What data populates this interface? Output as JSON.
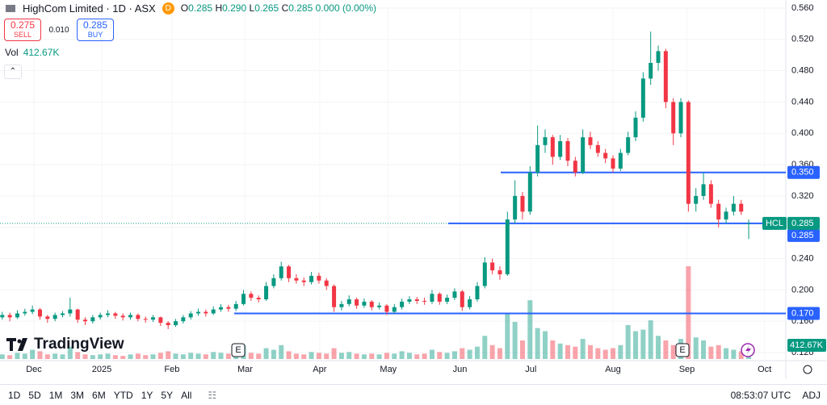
{
  "chart_data": {
    "type": "candlestick",
    "title": "HighCom Limited · 1D · ASX",
    "ticker": "HCL",
    "up_color": "#089981",
    "down_color": "#f23645",
    "ylim": [
      0.12,
      0.56
    ],
    "yticks": [
      {
        "value": 0.56,
        "label": "0.560"
      },
      {
        "value": 0.52,
        "label": "0.520"
      },
      {
        "value": 0.48,
        "label": "0.480"
      },
      {
        "value": 0.44,
        "label": "0.440"
      },
      {
        "value": 0.4,
        "label": "0.400"
      },
      {
        "value": 0.36,
        "label": "0.360"
      },
      {
        "value": 0.32,
        "label": "0.320"
      },
      {
        "value": 0.28,
        "label": "0.280"
      },
      {
        "value": 0.24,
        "label": "0.240"
      },
      {
        "value": 0.2,
        "label": "0.200"
      },
      {
        "value": 0.16,
        "label": "0.160"
      },
      {
        "value": 0.12,
        "label": "0.120"
      }
    ],
    "xlim": [
      -0.3,
      103.6
    ],
    "xticks": [
      {
        "value": 4.2,
        "label": "Dec"
      },
      {
        "value": 13.2,
        "label": "2025"
      },
      {
        "value": 22.5,
        "label": "Feb"
      },
      {
        "value": 32.2,
        "label": "Mar"
      },
      {
        "value": 42.1,
        "label": "Apr"
      },
      {
        "value": 51.2,
        "label": "May"
      },
      {
        "value": 60.7,
        "label": "Jun"
      },
      {
        "value": 70.1,
        "label": "Jul"
      },
      {
        "value": 81,
        "label": "Aug"
      },
      {
        "value": 90.8,
        "label": "Sep"
      },
      {
        "value": 101.1,
        "label": "Oct"
      }
    ],
    "candles": [
      [
        0.165,
        0.172,
        0.162,
        0.168
      ],
      [
        0.168,
        0.171,
        0.16,
        0.165
      ],
      [
        0.165,
        0.174,
        0.163,
        0.17
      ],
      [
        0.17,
        0.176,
        0.167,
        0.172
      ],
      [
        0.172,
        0.18,
        0.169,
        0.175
      ],
      [
        0.175,
        0.177,
        0.162,
        0.166
      ],
      [
        0.166,
        0.168,
        0.158,
        0.163
      ],
      [
        0.163,
        0.171,
        0.16,
        0.168
      ],
      [
        0.168,
        0.173,
        0.165,
        0.17
      ],
      [
        0.17,
        0.19,
        0.166,
        0.175
      ],
      [
        0.175,
        0.176,
        0.158,
        0.162
      ],
      [
        0.162,
        0.165,
        0.155,
        0.16
      ],
      [
        0.16,
        0.168,
        0.157,
        0.165
      ],
      [
        0.165,
        0.171,
        0.162,
        0.168
      ],
      [
        0.168,
        0.174,
        0.165,
        0.17
      ],
      [
        0.17,
        0.172,
        0.163,
        0.167
      ],
      [
        0.167,
        0.17,
        0.161,
        0.165
      ],
      [
        0.165,
        0.171,
        0.162,
        0.168
      ],
      [
        0.168,
        0.17,
        0.16,
        0.163
      ],
      [
        0.163,
        0.166,
        0.158,
        0.162
      ],
      [
        0.162,
        0.168,
        0.159,
        0.165
      ],
      [
        0.165,
        0.166,
        0.154,
        0.158
      ],
      [
        0.158,
        0.16,
        0.15,
        0.155
      ],
      [
        0.155,
        0.163,
        0.153,
        0.16
      ],
      [
        0.16,
        0.168,
        0.157,
        0.165
      ],
      [
        0.165,
        0.173,
        0.162,
        0.17
      ],
      [
        0.17,
        0.176,
        0.167,
        0.172
      ],
      [
        0.172,
        0.175,
        0.166,
        0.17
      ],
      [
        0.17,
        0.179,
        0.168,
        0.175
      ],
      [
        0.175,
        0.182,
        0.172,
        0.178
      ],
      [
        0.178,
        0.181,
        0.172,
        0.176
      ],
      [
        0.176,
        0.186,
        0.173,
        0.182
      ],
      [
        0.182,
        0.2,
        0.18,
        0.195
      ],
      [
        0.195,
        0.198,
        0.186,
        0.19
      ],
      [
        0.19,
        0.193,
        0.184,
        0.188
      ],
      [
        0.188,
        0.21,
        0.186,
        0.205
      ],
      [
        0.205,
        0.22,
        0.202,
        0.215
      ],
      [
        0.215,
        0.236,
        0.212,
        0.23
      ],
      [
        0.23,
        0.232,
        0.21,
        0.215
      ],
      [
        0.215,
        0.22,
        0.208,
        0.212
      ],
      [
        0.212,
        0.216,
        0.205,
        0.21
      ],
      [
        0.21,
        0.223,
        0.207,
        0.218
      ],
      [
        0.218,
        0.222,
        0.208,
        0.212
      ],
      [
        0.212,
        0.215,
        0.2,
        0.205
      ],
      [
        0.205,
        0.207,
        0.172,
        0.178
      ],
      [
        0.178,
        0.186,
        0.174,
        0.182
      ],
      [
        0.182,
        0.193,
        0.179,
        0.188
      ],
      [
        0.188,
        0.19,
        0.176,
        0.18
      ],
      [
        0.18,
        0.189,
        0.177,
        0.185
      ],
      [
        0.185,
        0.187,
        0.174,
        0.178
      ],
      [
        0.178,
        0.184,
        0.175,
        0.18
      ],
      [
        0.18,
        0.182,
        0.168,
        0.172
      ],
      [
        0.172,
        0.182,
        0.17,
        0.178
      ],
      [
        0.178,
        0.189,
        0.175,
        0.185
      ],
      [
        0.185,
        0.192,
        0.182,
        0.188
      ],
      [
        0.188,
        0.191,
        0.182,
        0.186
      ],
      [
        0.186,
        0.19,
        0.181,
        0.185
      ],
      [
        0.185,
        0.2,
        0.182,
        0.195
      ],
      [
        0.195,
        0.197,
        0.181,
        0.185
      ],
      [
        0.185,
        0.194,
        0.182,
        0.19
      ],
      [
        0.19,
        0.202,
        0.187,
        0.198
      ],
      [
        0.198,
        0.2,
        0.173,
        0.178
      ],
      [
        0.178,
        0.192,
        0.175,
        0.188
      ],
      [
        0.188,
        0.21,
        0.185,
        0.205
      ],
      [
        0.205,
        0.242,
        0.202,
        0.235
      ],
      [
        0.235,
        0.24,
        0.22,
        0.225
      ],
      [
        0.225,
        0.23,
        0.213,
        0.22
      ],
      [
        0.22,
        0.3,
        0.218,
        0.29
      ],
      [
        0.29,
        0.34,
        0.285,
        0.32
      ],
      [
        0.32,
        0.325,
        0.29,
        0.3
      ],
      [
        0.3,
        0.358,
        0.296,
        0.35
      ],
      [
        0.35,
        0.41,
        0.345,
        0.385
      ],
      [
        0.385,
        0.405,
        0.375,
        0.395
      ],
      [
        0.395,
        0.398,
        0.36,
        0.37
      ],
      [
        0.37,
        0.398,
        0.366,
        0.39
      ],
      [
        0.39,
        0.394,
        0.358,
        0.365
      ],
      [
        0.365,
        0.37,
        0.345,
        0.35
      ],
      [
        0.35,
        0.405,
        0.348,
        0.395
      ],
      [
        0.395,
        0.402,
        0.38,
        0.385
      ],
      [
        0.385,
        0.39,
        0.37,
        0.375
      ],
      [
        0.375,
        0.38,
        0.362,
        0.368
      ],
      [
        0.368,
        0.372,
        0.35,
        0.355
      ],
      [
        0.355,
        0.38,
        0.352,
        0.375
      ],
      [
        0.375,
        0.402,
        0.372,
        0.395
      ],
      [
        0.395,
        0.428,
        0.39,
        0.42
      ],
      [
        0.42,
        0.478,
        0.415,
        0.47
      ],
      [
        0.47,
        0.53,
        0.462,
        0.49
      ],
      [
        0.49,
        0.512,
        0.48,
        0.505
      ],
      [
        0.505,
        0.508,
        0.432,
        0.44
      ],
      [
        0.44,
        0.445,
        0.385,
        0.4
      ],
      [
        0.4,
        0.445,
        0.395,
        0.44
      ],
      [
        0.44,
        0.442,
        0.3,
        0.31
      ],
      [
        0.31,
        0.33,
        0.3,
        0.32
      ],
      [
        0.32,
        0.35,
        0.315,
        0.335
      ],
      [
        0.335,
        0.34,
        0.305,
        0.31
      ],
      [
        0.31,
        0.315,
        0.28,
        0.29
      ],
      [
        0.29,
        0.305,
        0.285,
        0.3
      ],
      [
        0.3,
        0.32,
        0.295,
        0.31
      ],
      [
        0.31,
        0.315,
        0.296,
        0.3
      ],
      [
        0.285,
        0.29,
        0.265,
        0.285
      ]
    ],
    "volumes": [
      300,
      250,
      400,
      350,
      600,
      500,
      300,
      350,
      300,
      800,
      450,
      300,
      250,
      300,
      350,
      250,
      200,
      300,
      350,
      250,
      300,
      400,
      500,
      350,
      300,
      400,
      350,
      300,
      450,
      400,
      350,
      500,
      900,
      400,
      350,
      700,
      600,
      900,
      500,
      350,
      300,
      450,
      400,
      350,
      700,
      400,
      450,
      350,
      300,
      350,
      300,
      400,
      350,
      500,
      400,
      300,
      350,
      600,
      450,
      400,
      500,
      700,
      600,
      800,
      1500,
      900,
      700,
      3000,
      2400,
      1200,
      3800,
      2000,
      1800,
      1200,
      1000,
      900,
      800,
      1300,
      900,
      700,
      600,
      700,
      900,
      2200,
      1800,
      1900,
      2500,
      1500,
      1200,
      900,
      1300,
      6000,
      1400,
      1200,
      800,
      900,
      700,
      600,
      500,
      412.67
    ],
    "volume_label": "412.67K",
    "hlines": [
      {
        "value": 0.35,
        "label": "0.350"
      },
      {
        "value": 0.285,
        "label": "0.285"
      },
      {
        "value": 0.17,
        "label": "0.170"
      }
    ],
    "last_price": {
      "value": 0.285,
      "label": "0.285"
    },
    "events": [
      "E",
      "E"
    ]
  },
  "ui": {
    "currency_badge": "D",
    "ohlc": [
      [
        "O",
        "0.285"
      ],
      [
        "H",
        "0.290"
      ],
      [
        "L",
        "0.265"
      ],
      [
        "C",
        "0.285"
      ]
    ],
    "change": "0.000 (0.00%)",
    "sell": {
      "price": "0.275",
      "label": "SELL"
    },
    "spread": "0.010",
    "buy": {
      "price": "0.285",
      "label": "BUY"
    },
    "volume_title": "Vol",
    "volume_value": "412.67K",
    "logo": "TradingView",
    "ranges": [
      "1D",
      "5D",
      "1M",
      "3M",
      "6M",
      "YTD",
      "1Y",
      "5Y",
      "All"
    ],
    "clock": "08:53:07 UTC",
    "adj": "ADJ"
  }
}
